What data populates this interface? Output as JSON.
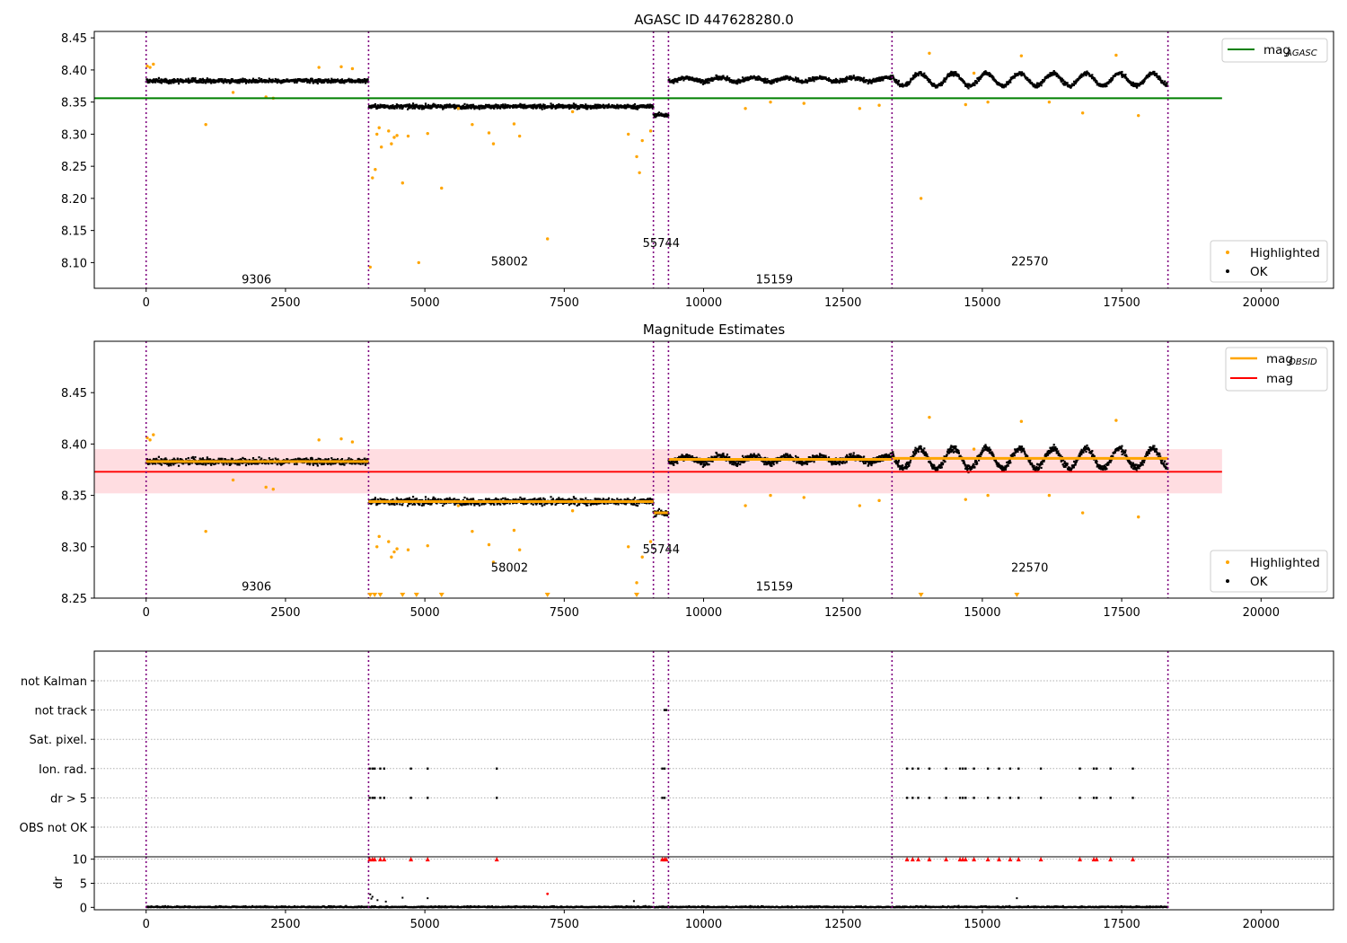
{
  "chart_data": [
    {
      "type": "scatter",
      "title": "AGASC ID 447628280.0",
      "xlim": [
        -930,
        21300
      ],
      "ylim": [
        8.06,
        8.46
      ],
      "xticks": [
        "0",
        "2500",
        "5000",
        "7500",
        "10000",
        "12500",
        "15000",
        "17500",
        "20000"
      ],
      "xtick_values": [
        0,
        2500,
        5000,
        7500,
        10000,
        12500,
        15000,
        17500,
        20000
      ],
      "yticks": [
        "8.10",
        "8.15",
        "8.20",
        "8.25",
        "8.30",
        "8.35",
        "8.40",
        "8.45"
      ],
      "ytick_values": [
        8.1,
        8.15,
        8.2,
        8.25,
        8.3,
        8.35,
        8.4,
        8.45
      ],
      "obs_boundaries": [
        0,
        3990,
        9100,
        9370,
        13380,
        18330
      ],
      "obs_segments": [
        {
          "obsid": "9306",
          "x_start": 0,
          "x_end": 3990,
          "mean": 8.383,
          "label_x": 1980,
          "label_y": 8.075
        },
        {
          "obsid": "58002",
          "x_start": 3990,
          "x_end": 9100,
          "mean": 8.343,
          "label_x": 6520,
          "label_y": 8.103
        },
        {
          "obsid": "55744",
          "x_start": 9100,
          "x_end": 9370,
          "mean": 8.33,
          "label_x": 9240,
          "label_y": 8.131
        },
        {
          "obsid": "15159",
          "x_start": 9370,
          "x_end": 13380,
          "mean": 8.385,
          "label_x": 11270,
          "label_y": 8.075
        },
        {
          "obsid": "22570",
          "x_start": 13380,
          "x_end": 18330,
          "mean": 8.385,
          "label_x": 15850,
          "label_y": 8.103
        }
      ],
      "hline": {
        "name": "mag_AGASC",
        "value": 8.356,
        "x_end": 19300,
        "color": "#008000"
      },
      "legend_top": [
        {
          "label": "mag",
          "sub": "AGASC",
          "color": "#008000"
        }
      ],
      "legend_bottom": [
        {
          "label": "Highlighted",
          "color": "#ffa500"
        },
        {
          "label": "OK",
          "color": "#000000"
        }
      ],
      "highlighted_points": [
        [
          20,
          8.406
        ],
        [
          70,
          8.404
        ],
        [
          130,
          8.409
        ],
        [
          1070,
          8.315
        ],
        [
          1560,
          8.365
        ],
        [
          2150,
          8.358
        ],
        [
          2280,
          8.356
        ],
        [
          3100,
          8.404
        ],
        [
          3500,
          8.405
        ],
        [
          3700,
          8.402
        ],
        [
          4020,
          8.093
        ],
        [
          4060,
          8.232
        ],
        [
          4110,
          8.245
        ],
        [
          4140,
          8.3
        ],
        [
          4180,
          8.31
        ],
        [
          4220,
          8.28
        ],
        [
          4350,
          8.305
        ],
        [
          4400,
          8.285
        ],
        [
          4450,
          8.295
        ],
        [
          4500,
          8.298
        ],
        [
          4600,
          8.224
        ],
        [
          4700,
          8.297
        ],
        [
          4890,
          8.1
        ],
        [
          5050,
          8.301
        ],
        [
          5300,
          8.216
        ],
        [
          5600,
          8.34
        ],
        [
          5850,
          8.315
        ],
        [
          6150,
          8.302
        ],
        [
          6230,
          8.285
        ],
        [
          6600,
          8.316
        ],
        [
          6700,
          8.297
        ],
        [
          7200,
          8.137
        ],
        [
          7650,
          8.335
        ],
        [
          8650,
          8.3
        ],
        [
          8800,
          8.265
        ],
        [
          8850,
          8.24
        ],
        [
          8900,
          8.29
        ],
        [
          9050,
          8.305
        ],
        [
          10750,
          8.34
        ],
        [
          11200,
          8.35
        ],
        [
          11800,
          8.348
        ],
        [
          12800,
          8.34
        ],
        [
          13150,
          8.345
        ],
        [
          13900,
          8.2
        ],
        [
          14050,
          8.426
        ],
        [
          14700,
          8.346
        ],
        [
          14850,
          8.395
        ],
        [
          15100,
          8.35
        ],
        [
          15700,
          8.422
        ],
        [
          16200,
          8.35
        ],
        [
          16800,
          8.333
        ],
        [
          17400,
          8.423
        ],
        [
          17800,
          8.329
        ]
      ]
    },
    {
      "type": "scatter",
      "title": "Magnitude Estimates",
      "xlim": [
        -930,
        21300
      ],
      "ylim": [
        8.25,
        8.5
      ],
      "xticks": [
        "0",
        "2500",
        "5000",
        "7500",
        "10000",
        "12500",
        "15000",
        "17500",
        "20000"
      ],
      "xtick_values": [
        0,
        2500,
        5000,
        7500,
        10000,
        12500,
        15000,
        17500,
        20000
      ],
      "yticks": [
        "8.25",
        "8.30",
        "8.35",
        "8.40",
        "8.45"
      ],
      "ytick_values": [
        8.25,
        8.3,
        8.35,
        8.4,
        8.45
      ],
      "obs_boundaries": [
        0,
        3990,
        9100,
        9370,
        13380,
        18330
      ],
      "obs_segments": [
        {
          "obsid": "9306",
          "x_start": 0,
          "x_end": 3990,
          "mean": 8.383,
          "label_x": 1980,
          "label_y": 8.262
        },
        {
          "obsid": "58002",
          "x_start": 3990,
          "x_end": 9100,
          "mean": 8.344,
          "label_x": 6520,
          "label_y": 8.28
        },
        {
          "obsid": "55744",
          "x_start": 9100,
          "x_end": 9370,
          "mean": 8.333,
          "label_x": 9240,
          "label_y": 8.298
        },
        {
          "obsid": "15159",
          "x_start": 9370,
          "x_end": 13380,
          "mean": 8.385,
          "label_x": 11270,
          "label_y": 8.262
        },
        {
          "obsid": "22570",
          "x_start": 13380,
          "x_end": 18330,
          "mean": 8.386,
          "label_x": 15850,
          "label_y": 8.28
        }
      ],
      "mag": {
        "value": 8.373,
        "band": [
          8.352,
          8.395
        ],
        "x_end": 19300,
        "color": "#ff0000",
        "band_color": "#ffdde1"
      },
      "legend_top": [
        {
          "label": "mag",
          "sub": "OBSID",
          "color": "#ffa500"
        },
        {
          "label": "mag",
          "sub": "",
          "color": "#ff0000"
        }
      ],
      "legend_bottom": [
        {
          "label": "Highlighted",
          "color": "#ffa500"
        },
        {
          "label": "OK",
          "color": "#000000"
        }
      ],
      "offscale_markers_x": [
        4020,
        4100,
        4200,
        4600,
        4850,
        5300,
        7200,
        8800,
        13900,
        15620
      ],
      "highlighted_points": [
        [
          20,
          8.406
        ],
        [
          70,
          8.404
        ],
        [
          130,
          8.409
        ],
        [
          1070,
          8.315
        ],
        [
          1560,
          8.365
        ],
        [
          2150,
          8.358
        ],
        [
          2280,
          8.356
        ],
        [
          3100,
          8.404
        ],
        [
          3500,
          8.405
        ],
        [
          3700,
          8.402
        ],
        [
          4140,
          8.3
        ],
        [
          4180,
          8.31
        ],
        [
          4350,
          8.305
        ],
        [
          4400,
          8.29
        ],
        [
          4450,
          8.295
        ],
        [
          4500,
          8.298
        ],
        [
          4700,
          8.297
        ],
        [
          5050,
          8.301
        ],
        [
          5600,
          8.34
        ],
        [
          5850,
          8.315
        ],
        [
          6150,
          8.302
        ],
        [
          6230,
          8.285
        ],
        [
          6600,
          8.316
        ],
        [
          6700,
          8.297
        ],
        [
          7650,
          8.335
        ],
        [
          8650,
          8.3
        ],
        [
          8800,
          8.265
        ],
        [
          8900,
          8.29
        ],
        [
          9050,
          8.305
        ],
        [
          10750,
          8.34
        ],
        [
          11200,
          8.35
        ],
        [
          11800,
          8.348
        ],
        [
          12800,
          8.34
        ],
        [
          13150,
          8.345
        ],
        [
          14050,
          8.426
        ],
        [
          14700,
          8.346
        ],
        [
          14850,
          8.395
        ],
        [
          15100,
          8.35
        ],
        [
          15700,
          8.422
        ],
        [
          16200,
          8.35
        ],
        [
          16800,
          8.333
        ],
        [
          17400,
          8.423
        ],
        [
          17800,
          8.329
        ]
      ]
    },
    {
      "type": "scatter",
      "title": "",
      "xlim": [
        -930,
        21300
      ],
      "flag_rows": [
        "not Kalman",
        "not track",
        "Sat. pixel.",
        "Ion. rad.",
        "dr > 5",
        "OBS not OK"
      ],
      "obs_boundaries": [
        0,
        3990,
        9100,
        9370,
        13380,
        18330
      ],
      "flags": {
        "not track": [
          9300,
          9330
        ],
        "Ion. rad.": [
          4010,
          4060,
          4100,
          4200,
          4270,
          4750,
          5050,
          6290,
          9260,
          9300,
          13650,
          13750,
          13850,
          14050,
          14350,
          14600,
          14650,
          14700,
          14850,
          15100,
          15300,
          15500,
          15650,
          16050,
          16750,
          17000,
          17050,
          17300,
          17700
        ],
        "dr > 5": [
          4010,
          4060,
          4100,
          4200,
          4270,
          4750,
          5050,
          6290,
          9260,
          9300,
          13650,
          13750,
          13850,
          14050,
          14350,
          14600,
          14650,
          14700,
          14850,
          15100,
          15300,
          15500,
          15650,
          16050,
          16750,
          17000,
          17050,
          17300,
          17700
        ]
      }
    },
    {
      "type": "scatter",
      "title": "",
      "xlim": [
        -930,
        21300
      ],
      "ylim": [
        -0.5,
        10.5
      ],
      "ylabel": "dr",
      "xticks": [
        "0",
        "2500",
        "5000",
        "7500",
        "10000",
        "12500",
        "15000",
        "17500",
        "20000"
      ],
      "xtick_values": [
        0,
        2500,
        5000,
        7500,
        10000,
        12500,
        15000,
        17500,
        20000
      ],
      "yticks": [
        "0",
        "5",
        "10"
      ],
      "ytick_values": [
        0,
        5,
        10
      ],
      "obs_boundaries": [
        0,
        3990,
        9100,
        9370,
        13380,
        18330
      ],
      "clipped_x": [
        4010,
        4060,
        4100,
        4200,
        4270,
        4750,
        5050,
        6290,
        9260,
        9300,
        9330,
        13650,
        13750,
        13850,
        14050,
        14350,
        14600,
        14650,
        14700,
        14850,
        15100,
        15300,
        15500,
        15650,
        16050,
        16750,
        17000,
        17050,
        17300,
        17700
      ],
      "red_point": [
        7200,
        2.8
      ],
      "outliers": [
        [
          4020,
          2.7
        ],
        [
          4040,
          1.8
        ],
        [
          4060,
          2.2
        ],
        [
          4150,
          1.5
        ],
        [
          4300,
          1.2
        ],
        [
          4600,
          2.0
        ],
        [
          5050,
          1.9
        ],
        [
          8750,
          1.3
        ],
        [
          15620,
          1.9
        ]
      ]
    }
  ]
}
